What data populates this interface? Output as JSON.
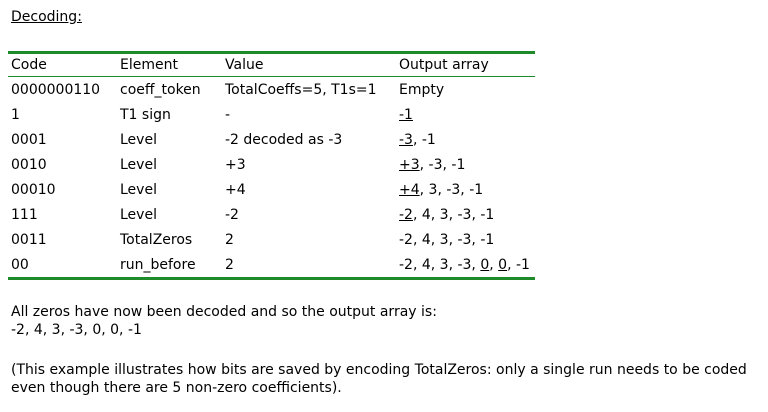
{
  "heading": "Decoding:",
  "table": {
    "headers": [
      "Code",
      "Element",
      "Value",
      "Output array"
    ],
    "rows": [
      {
        "code": "0000000110",
        "element": "coeff_token",
        "value": "TotalCoeffs=5, T1s=1",
        "output": [
          {
            "t": "Empty",
            "u": false
          }
        ]
      },
      {
        "code": "1",
        "element": "T1 sign",
        "value": "-",
        "output": [
          {
            "t": "-1",
            "u": true
          }
        ]
      },
      {
        "code": "0001",
        "element": "Level",
        "value": "-2 decoded as -3",
        "output": [
          {
            "t": "-3",
            "u": true
          },
          {
            "t": ", -1",
            "u": false
          }
        ]
      },
      {
        "code": "0010",
        "element": "Level",
        "value": "+3",
        "output": [
          {
            "t": "+3",
            "u": true
          },
          {
            "t": ", -3, -1",
            "u": false
          }
        ]
      },
      {
        "code": "00010",
        "element": "Level",
        "value": "+4",
        "output": [
          {
            "t": "+4",
            "u": true
          },
          {
            "t": ", 3, -3, -1",
            "u": false
          }
        ]
      },
      {
        "code": "111",
        "element": "Level",
        "value": "-2",
        "output": [
          {
            "t": "-2",
            "u": true
          },
          {
            "t": ", 4, 3, -3, -1",
            "u": false
          }
        ]
      },
      {
        "code": "0011",
        "element": "TotalZeros",
        "value": "2",
        "output": [
          {
            "t": "-2, 4, 3, -3, -1",
            "u": false
          }
        ]
      },
      {
        "code": "00",
        "element": "run_before",
        "value": "2",
        "output": [
          {
            "t": "-2, 4, 3, -3, ",
            "u": false
          },
          {
            "t": "0",
            "u": true
          },
          {
            "t": ", ",
            "u": false
          },
          {
            "t": "0",
            "u": true
          },
          {
            "t": ", -1",
            "u": false
          }
        ]
      }
    ]
  },
  "paragraphs": {
    "p1_line1": "All zeros have now been decoded and so the output array is:",
    "p1_line2": "-2, 4, 3, -3, 0, 0, -1",
    "p2_line1": "(This example illustrates how bits are saved by encoding TotalZeros: only a single run needs to be coded",
    "p2_line2": "even though there are 5 non-zero coefficients)."
  }
}
